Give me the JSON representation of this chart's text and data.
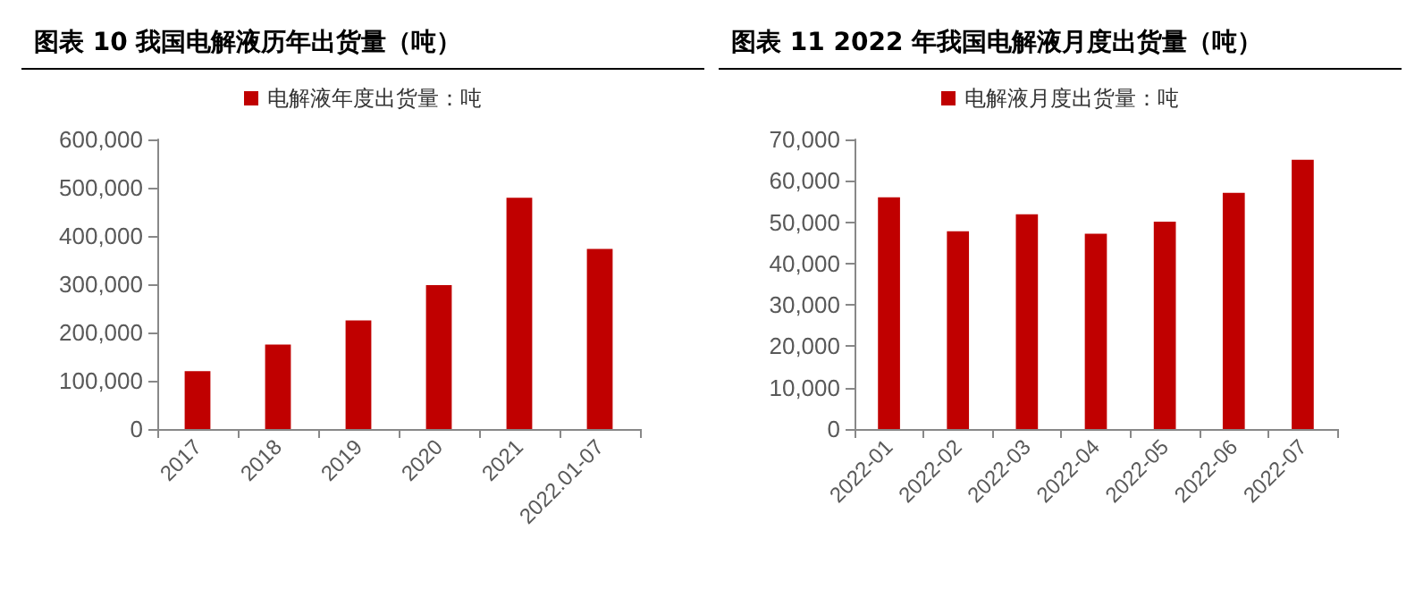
{
  "chart_data": [
    {
      "type": "bar",
      "title": "图表 10 我国电解液历年出货量（吨）",
      "categories": [
        "2017",
        "2018",
        "2019",
        "2020",
        "2021",
        "2022.01-07"
      ],
      "series": [
        {
          "name": "电解液年度出货量：吨",
          "color": "#c00000",
          "values": [
            120000,
            175000,
            225000,
            298000,
            479000,
            373000
          ]
        }
      ],
      "ylim": [
        0,
        600000
      ],
      "yticks": [
        0,
        {
          "value": 100000,
          "label": "100,000"
        },
        {
          "value": 200000,
          "label": "200,000"
        },
        {
          "value": 300000,
          "label": "300,000"
        },
        {
          "value": 400000,
          "label": "400,000"
        },
        {
          "value": 500000,
          "label": "500,000"
        },
        {
          "value": 600000,
          "label": "600,000"
        }
      ],
      "grid": false,
      "legend": "top"
    },
    {
      "type": "bar",
      "title": "图表 11 2022 年我国电解液月度出货量（吨）",
      "categories": [
        "2022-01",
        "2022-02",
        "2022-03",
        "2022-04",
        "2022-05",
        "2022-06",
        "2022-07"
      ],
      "series": [
        {
          "name": "电解液月度出货量：吨",
          "color": "#c00000",
          "values": [
            56000,
            47800,
            51900,
            47200,
            50100,
            57100,
            65100
          ]
        }
      ],
      "ylim": [
        0,
        70000
      ],
      "yticks": [
        0,
        {
          "value": 10000,
          "label": "10,000"
        },
        {
          "value": 20000,
          "label": "20,000"
        },
        {
          "value": 30000,
          "label": "30,000"
        },
        {
          "value": 40000,
          "label": "40,000"
        },
        {
          "value": 50000,
          "label": "50,000"
        },
        {
          "value": 60000,
          "label": "60,000"
        },
        {
          "value": 70000,
          "label": "70,000"
        }
      ],
      "grid": false,
      "legend": "top"
    }
  ]
}
